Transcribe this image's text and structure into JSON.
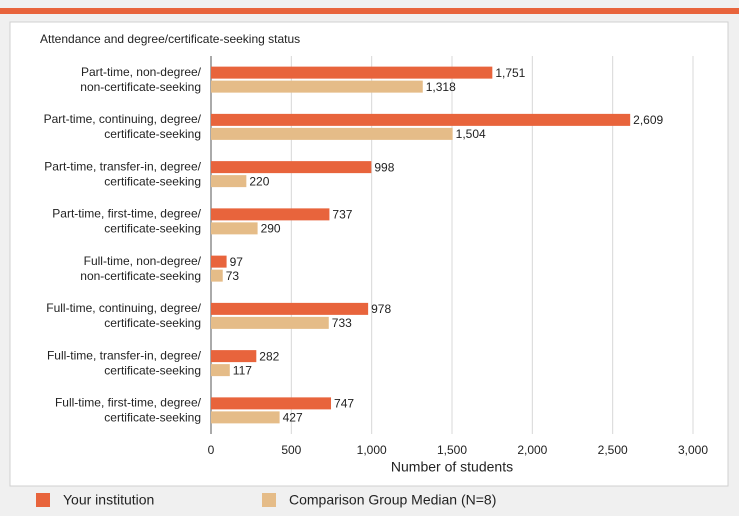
{
  "chart_data": {
    "type": "barh",
    "title": "Attendance and degree/certificate-seeking status",
    "xlabel": "Number of students",
    "categories": [
      [
        "Part-time, non-degree/",
        "non-certificate-seeking"
      ],
      [
        "Part-time, continuing, degree/",
        "certificate-seeking"
      ],
      [
        "Part-time, transfer-in, degree/",
        "certificate-seeking"
      ],
      [
        "Part-time, first-time, degree/",
        "certificate-seeking"
      ],
      [
        "Full-time, non-degree/",
        "non-certificate-seeking"
      ],
      [
        "Full-time, continuing, degree/",
        "certificate-seeking"
      ],
      [
        "Full-time, transfer-in, degree/",
        "certificate-seeking"
      ],
      [
        "Full-time, first-time, degree/",
        "certificate-seeking"
      ]
    ],
    "series": [
      {
        "name": "Your institution",
        "color": "#e8643c",
        "values": [
          1751,
          2609,
          998,
          737,
          97,
          978,
          282,
          747
        ],
        "value_labels": [
          "1,751",
          "2,609",
          "998",
          "737",
          "97",
          "978",
          "282",
          "747"
        ]
      },
      {
        "name": "Comparison Group Median (N=8)",
        "color": "#e5bc88",
        "values": [
          1318,
          1504,
          220,
          290,
          73,
          733,
          117,
          427
        ],
        "value_labels": [
          "1,318",
          "1,504",
          "220",
          "290",
          "73",
          "733",
          "117",
          "427"
        ]
      }
    ],
    "xlim": [
      0,
      3000
    ],
    "xticks": [
      0,
      500,
      {
        "value": 1000,
        "label": "1,000"
      },
      {
        "value": 1500,
        "label": "1,500"
      },
      {
        "value": 2000,
        "label": "2,000"
      },
      {
        "value": 2500,
        "label": "2,500"
      },
      {
        "value": 3000,
        "label": "3,000"
      }
    ],
    "grid": true,
    "legend": "bottom"
  }
}
